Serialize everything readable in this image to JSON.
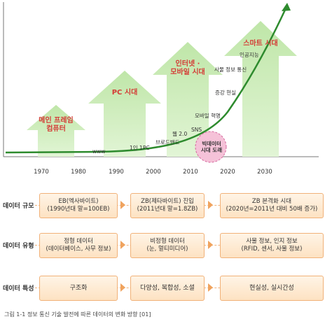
{
  "eras": [
    {
      "title_line1": "메인 프레임",
      "title_line2": "컴퓨터"
    },
    {
      "title_line1": "PC 시대",
      "title_line2": ""
    },
    {
      "title_line1": "인터넷 ·",
      "title_line2": "모바일 시대"
    },
    {
      "title_line1": "스마트 시대",
      "title_line2": ""
    }
  ],
  "timeline_notes": {
    "www": "www",
    "one_person_pc": "1인 1PC",
    "broadband": "브로드밴드",
    "web20": "웹 2.0",
    "sns": "SNS",
    "mobile_revolution": "모바일 혁명",
    "augmented_reality": "증강 현실",
    "iot": "사물 정보 통신",
    "ai": "인공지능"
  },
  "bigdata_label": {
    "line1": "빅데이터",
    "line2": "시대 도래"
  },
  "years": [
    "1970",
    "1980",
    "1990",
    "2000",
    "2010",
    "2020",
    "2030"
  ],
  "rows": [
    {
      "label": "데이터 규모",
      "cells": [
        {
          "line1": "EB(엑사바이트)",
          "line2": "(1990년대 말=100EB)"
        },
        {
          "line1": "ZB(제타바이트) 진입",
          "line2": "(2011년대 말=1.8ZB)"
        },
        {
          "line1": "ZB 본격화 시대",
          "line2": "(2020년=2011년 대비 50배 증가)"
        }
      ]
    },
    {
      "label": "데이터 유형",
      "cells": [
        {
          "line1": "정형 데이터",
          "line2": "(데이터베이스, 사무 정보)"
        },
        {
          "line1": "비정형 데이터",
          "line2": "(눈, 멀티미디어)"
        },
        {
          "line1": "사물 정보, 인지 정보",
          "line2": "(RFID, 센서, 사물 정보)"
        }
      ]
    },
    {
      "label": "데이터 특성",
      "cells": [
        {
          "line1": "구조화",
          "line2": ""
        },
        {
          "line1": "다양성, 복합성, 소셜",
          "line2": ""
        },
        {
          "line1": "현실성, 실시간성",
          "line2": ""
        }
      ]
    }
  ],
  "caption": "그림 1-1  정보 통신 기술 발전에 따른 데이터의 변화 방향 [01]",
  "colors": {
    "arrow_fill": "#c8ebb4",
    "curve": "#2e8b2e",
    "era_text": "#d43a35",
    "box_border": "#f1b178",
    "bigdata": "#f5c2d8"
  }
}
